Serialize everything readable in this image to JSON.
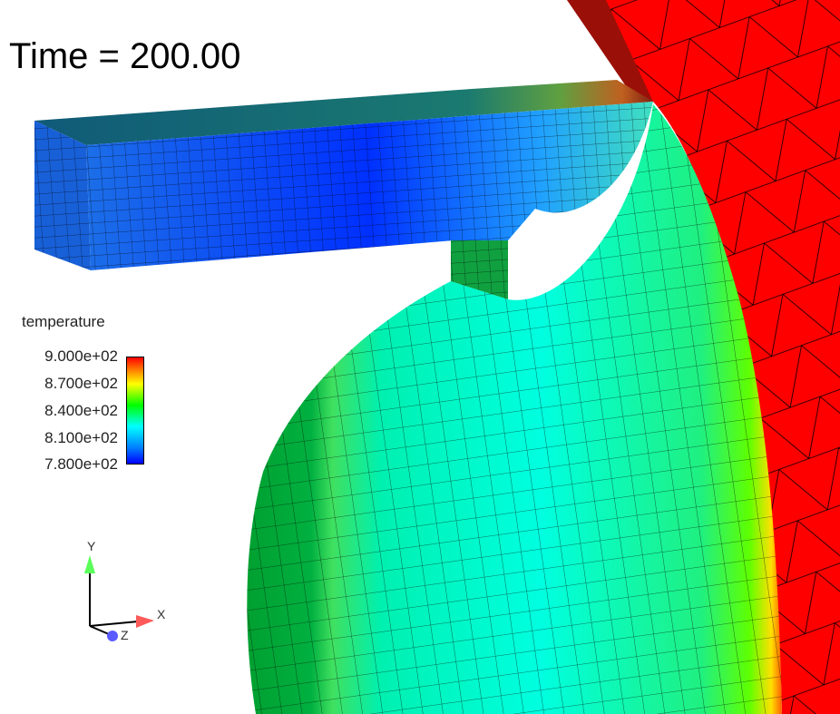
{
  "time_label": "Time = 200.00",
  "legend": {
    "title": "temperature",
    "ticks": [
      "9.000e+02",
      "8.700e+02",
      "8.400e+02",
      "8.100e+02",
      "7.800e+02"
    ],
    "range": [
      780,
      900
    ],
    "colormap": [
      "#0000ff",
      "#00ffff",
      "#00ff00",
      "#ffff00",
      "#ff0000"
    ]
  },
  "axes": {
    "x": "X",
    "y": "Y",
    "z": "Z",
    "x_color": "#ff5a5a",
    "y_color": "#5aff5a",
    "z_color": "#5a5aff"
  }
}
